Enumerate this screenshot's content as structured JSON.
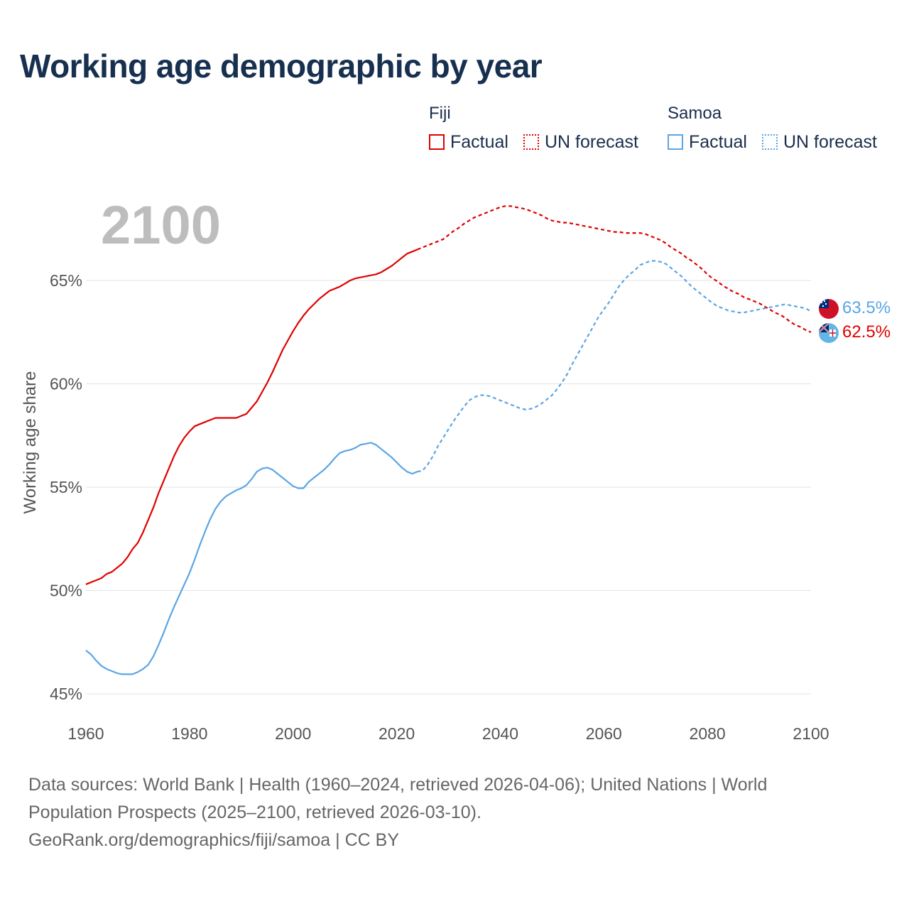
{
  "title": "Working age demographic by year",
  "legend": {
    "groups": [
      {
        "name": "Fiji",
        "color": "#e00000",
        "factual_label": "Factual",
        "forecast_label": "UN forecast"
      },
      {
        "name": "Samoa",
        "color": "#5aa5e6",
        "factual_label": "Factual",
        "forecast_label": "UN forecast"
      }
    ]
  },
  "year_watermark": "2100",
  "sources": {
    "line1": "Data sources: World Bank | Health (1960–2024, retrieved 2026-04-06); United Nations | World Population Prospects (2025–2100, retrieved 2026-03-10).",
    "line2": "GeoRank.org/demographics/fiji/samoa | CC BY"
  },
  "chart_data": {
    "type": "line",
    "title": "Working age demographic by year",
    "xlabel": "",
    "ylabel": "Working age share",
    "xlim": [
      1960,
      2100
    ],
    "ylim": [
      45,
      70
    ],
    "x_ticks": [
      1960,
      1980,
      2000,
      2020,
      2040,
      2060,
      2080,
      2100
    ],
    "y_ticks": [
      45,
      50,
      55,
      60,
      65
    ],
    "y_tick_labels": [
      "45%",
      "50%",
      "55%",
      "60%",
      "65%"
    ],
    "grid": true,
    "factual_end_year": 2024,
    "series": [
      {
        "name": "Fiji",
        "color": "#e00000",
        "end_label": "62.5%",
        "points": [
          [
            1960,
            50.3
          ],
          [
            1961,
            50.4
          ],
          [
            1962,
            50.5
          ],
          [
            1963,
            50.6
          ],
          [
            1964,
            50.8
          ],
          [
            1965,
            50.9
          ],
          [
            1966,
            51.1
          ],
          [
            1967,
            51.3
          ],
          [
            1968,
            51.6
          ],
          [
            1969,
            52.0
          ],
          [
            1970,
            52.3
          ],
          [
            1971,
            52.8
          ],
          [
            1972,
            53.4
          ],
          [
            1973,
            54.0
          ],
          [
            1974,
            54.7
          ],
          [
            1975,
            55.3
          ],
          [
            1976,
            55.9
          ],
          [
            1977,
            56.5
          ],
          [
            1978,
            57.0
          ],
          [
            1979,
            57.4
          ],
          [
            1980,
            57.7
          ],
          [
            1981,
            57.95
          ],
          [
            1982,
            58.05
          ],
          [
            1983,
            58.15
          ],
          [
            1984,
            58.25
          ],
          [
            1985,
            58.35
          ],
          [
            1986,
            58.35
          ],
          [
            1987,
            58.35
          ],
          [
            1988,
            58.35
          ],
          [
            1989,
            58.35
          ],
          [
            1990,
            58.45
          ],
          [
            1991,
            58.55
          ],
          [
            1992,
            58.85
          ],
          [
            1993,
            59.15
          ],
          [
            1994,
            59.6
          ],
          [
            1995,
            60.05
          ],
          [
            1996,
            60.55
          ],
          [
            1997,
            61.1
          ],
          [
            1998,
            61.65
          ],
          [
            1999,
            62.1
          ],
          [
            2000,
            62.55
          ],
          [
            2001,
            62.95
          ],
          [
            2002,
            63.3
          ],
          [
            2003,
            63.6
          ],
          [
            2004,
            63.85
          ],
          [
            2005,
            64.1
          ],
          [
            2006,
            64.3
          ],
          [
            2007,
            64.5
          ],
          [
            2008,
            64.6
          ],
          [
            2009,
            64.7
          ],
          [
            2010,
            64.85
          ],
          [
            2011,
            65.0
          ],
          [
            2012,
            65.1
          ],
          [
            2013,
            65.15
          ],
          [
            2014,
            65.2
          ],
          [
            2015,
            65.25
          ],
          [
            2016,
            65.3
          ],
          [
            2017,
            65.4
          ],
          [
            2018,
            65.55
          ],
          [
            2019,
            65.7
          ],
          [
            2020,
            65.9
          ],
          [
            2021,
            66.1
          ],
          [
            2022,
            66.3
          ],
          [
            2023,
            66.4
          ],
          [
            2024,
            66.5
          ],
          [
            2025,
            66.6
          ],
          [
            2026,
            66.7
          ],
          [
            2027,
            66.8
          ],
          [
            2028,
            66.9
          ],
          [
            2029,
            67.0
          ],
          [
            2030,
            67.2
          ],
          [
            2031,
            67.4
          ],
          [
            2032,
            67.55
          ],
          [
            2033,
            67.75
          ],
          [
            2034,
            67.9
          ],
          [
            2035,
            68.05
          ],
          [
            2036,
            68.15
          ],
          [
            2037,
            68.25
          ],
          [
            2038,
            68.35
          ],
          [
            2039,
            68.45
          ],
          [
            2040,
            68.55
          ],
          [
            2041,
            68.6
          ],
          [
            2042,
            68.6
          ],
          [
            2043,
            68.55
          ],
          [
            2044,
            68.5
          ],
          [
            2045,
            68.45
          ],
          [
            2046,
            68.35
          ],
          [
            2047,
            68.25
          ],
          [
            2048,
            68.15
          ],
          [
            2049,
            68.0
          ],
          [
            2050,
            67.9
          ],
          [
            2051,
            67.85
          ],
          [
            2052,
            67.8
          ],
          [
            2053,
            67.8
          ],
          [
            2054,
            67.75
          ],
          [
            2055,
            67.7
          ],
          [
            2056,
            67.65
          ],
          [
            2057,
            67.6
          ],
          [
            2058,
            67.55
          ],
          [
            2059,
            67.5
          ],
          [
            2060,
            67.45
          ],
          [
            2061,
            67.4
          ],
          [
            2062,
            67.35
          ],
          [
            2063,
            67.35
          ],
          [
            2064,
            67.3
          ],
          [
            2065,
            67.3
          ],
          [
            2066,
            67.3
          ],
          [
            2067,
            67.3
          ],
          [
            2068,
            67.25
          ],
          [
            2069,
            67.15
          ],
          [
            2070,
            67.05
          ],
          [
            2071,
            66.95
          ],
          [
            2072,
            66.8
          ],
          [
            2073,
            66.6
          ],
          [
            2074,
            66.45
          ],
          [
            2075,
            66.3
          ],
          [
            2076,
            66.1
          ],
          [
            2077,
            65.95
          ],
          [
            2078,
            65.75
          ],
          [
            2079,
            65.55
          ],
          [
            2080,
            65.3
          ],
          [
            2081,
            65.1
          ],
          [
            2082,
            64.95
          ],
          [
            2083,
            64.75
          ],
          [
            2084,
            64.6
          ],
          [
            2085,
            64.45
          ],
          [
            2086,
            64.35
          ],
          [
            2087,
            64.2
          ],
          [
            2088,
            64.1
          ],
          [
            2089,
            64.0
          ],
          [
            2090,
            63.9
          ],
          [
            2091,
            63.75
          ],
          [
            2092,
            63.6
          ],
          [
            2093,
            63.45
          ],
          [
            2094,
            63.35
          ],
          [
            2095,
            63.2
          ],
          [
            2096,
            63.0
          ],
          [
            2097,
            62.85
          ],
          [
            2098,
            62.75
          ],
          [
            2099,
            62.6
          ],
          [
            2100,
            62.5
          ]
        ]
      },
      {
        "name": "Samoa",
        "color": "#5aa5e6",
        "end_label": "63.5%",
        "points": [
          [
            1960,
            47.1
          ],
          [
            1961,
            46.9
          ],
          [
            1962,
            46.6
          ],
          [
            1963,
            46.35
          ],
          [
            1964,
            46.2
          ],
          [
            1965,
            46.1
          ],
          [
            1966,
            46.0
          ],
          [
            1967,
            45.95
          ],
          [
            1968,
            45.95
          ],
          [
            1969,
            45.95
          ],
          [
            1970,
            46.05
          ],
          [
            1971,
            46.2
          ],
          [
            1972,
            46.4
          ],
          [
            1973,
            46.8
          ],
          [
            1974,
            47.35
          ],
          [
            1975,
            47.95
          ],
          [
            1976,
            48.6
          ],
          [
            1977,
            49.2
          ],
          [
            1978,
            49.75
          ],
          [
            1979,
            50.3
          ],
          [
            1980,
            50.85
          ],
          [
            1981,
            51.5
          ],
          [
            1982,
            52.2
          ],
          [
            1983,
            52.85
          ],
          [
            1984,
            53.45
          ],
          [
            1985,
            53.95
          ],
          [
            1986,
            54.3
          ],
          [
            1987,
            54.55
          ],
          [
            1988,
            54.7
          ],
          [
            1989,
            54.85
          ],
          [
            1990,
            54.95
          ],
          [
            1991,
            55.1
          ],
          [
            1992,
            55.4
          ],
          [
            1993,
            55.75
          ],
          [
            1994,
            55.9
          ],
          [
            1995,
            55.95
          ],
          [
            1996,
            55.85
          ],
          [
            1997,
            55.65
          ],
          [
            1998,
            55.45
          ],
          [
            1999,
            55.25
          ],
          [
            2000,
            55.05
          ],
          [
            2001,
            54.95
          ],
          [
            2002,
            54.95
          ],
          [
            2003,
            55.25
          ],
          [
            2004,
            55.45
          ],
          [
            2005,
            55.65
          ],
          [
            2006,
            55.85
          ],
          [
            2007,
            56.1
          ],
          [
            2008,
            56.4
          ],
          [
            2009,
            56.65
          ],
          [
            2010,
            56.75
          ],
          [
            2011,
            56.8
          ],
          [
            2012,
            56.9
          ],
          [
            2013,
            57.05
          ],
          [
            2014,
            57.1
          ],
          [
            2015,
            57.15
          ],
          [
            2016,
            57.05
          ],
          [
            2017,
            56.85
          ],
          [
            2018,
            56.65
          ],
          [
            2019,
            56.45
          ],
          [
            2020,
            56.2
          ],
          [
            2021,
            55.95
          ],
          [
            2022,
            55.75
          ],
          [
            2023,
            55.65
          ],
          [
            2024,
            55.75
          ],
          [
            2025,
            55.8
          ],
          [
            2026,
            56.1
          ],
          [
            2027,
            56.5
          ],
          [
            2028,
            57.0
          ],
          [
            2029,
            57.4
          ],
          [
            2030,
            57.8
          ],
          [
            2031,
            58.2
          ],
          [
            2032,
            58.55
          ],
          [
            2033,
            58.9
          ],
          [
            2034,
            59.2
          ],
          [
            2035,
            59.35
          ],
          [
            2036,
            59.45
          ],
          [
            2037,
            59.45
          ],
          [
            2038,
            59.4
          ],
          [
            2039,
            59.3
          ],
          [
            2040,
            59.2
          ],
          [
            2041,
            59.1
          ],
          [
            2042,
            59.0
          ],
          [
            2043,
            58.9
          ],
          [
            2044,
            58.8
          ],
          [
            2045,
            58.75
          ],
          [
            2046,
            58.8
          ],
          [
            2047,
            58.9
          ],
          [
            2048,
            59.05
          ],
          [
            2049,
            59.25
          ],
          [
            2050,
            59.45
          ],
          [
            2051,
            59.75
          ],
          [
            2052,
            60.1
          ],
          [
            2053,
            60.5
          ],
          [
            2054,
            61.0
          ],
          [
            2055,
            61.45
          ],
          [
            2056,
            61.9
          ],
          [
            2057,
            62.35
          ],
          [
            2058,
            62.8
          ],
          [
            2059,
            63.25
          ],
          [
            2060,
            63.6
          ],
          [
            2061,
            63.95
          ],
          [
            2062,
            64.35
          ],
          [
            2063,
            64.75
          ],
          [
            2064,
            65.05
          ],
          [
            2065,
            65.3
          ],
          [
            2066,
            65.5
          ],
          [
            2067,
            65.75
          ],
          [
            2068,
            65.85
          ],
          [
            2069,
            65.95
          ],
          [
            2070,
            65.95
          ],
          [
            2071,
            65.9
          ],
          [
            2072,
            65.8
          ],
          [
            2073,
            65.6
          ],
          [
            2074,
            65.4
          ],
          [
            2075,
            65.2
          ],
          [
            2076,
            64.95
          ],
          [
            2077,
            64.7
          ],
          [
            2078,
            64.5
          ],
          [
            2079,
            64.3
          ],
          [
            2080,
            64.1
          ],
          [
            2081,
            63.9
          ],
          [
            2082,
            63.75
          ],
          [
            2083,
            63.65
          ],
          [
            2084,
            63.55
          ],
          [
            2085,
            63.5
          ],
          [
            2086,
            63.45
          ],
          [
            2087,
            63.45
          ],
          [
            2088,
            63.5
          ],
          [
            2089,
            63.55
          ],
          [
            2090,
            63.6
          ],
          [
            2091,
            63.65
          ],
          [
            2092,
            63.7
          ],
          [
            2093,
            63.75
          ],
          [
            2094,
            63.8
          ],
          [
            2095,
            63.85
          ],
          [
            2096,
            63.8
          ],
          [
            2097,
            63.75
          ],
          [
            2098,
            63.7
          ],
          [
            2099,
            63.65
          ],
          [
            2100,
            63.5
          ]
        ]
      }
    ]
  },
  "flags": {
    "samoa": {
      "name": "samoa-flag-icon",
      "field": "#ce1126",
      "canton": "#002b7f"
    },
    "fiji": {
      "name": "fiji-flag-icon",
      "field": "#62b5e5",
      "canton": "#002868"
    }
  }
}
